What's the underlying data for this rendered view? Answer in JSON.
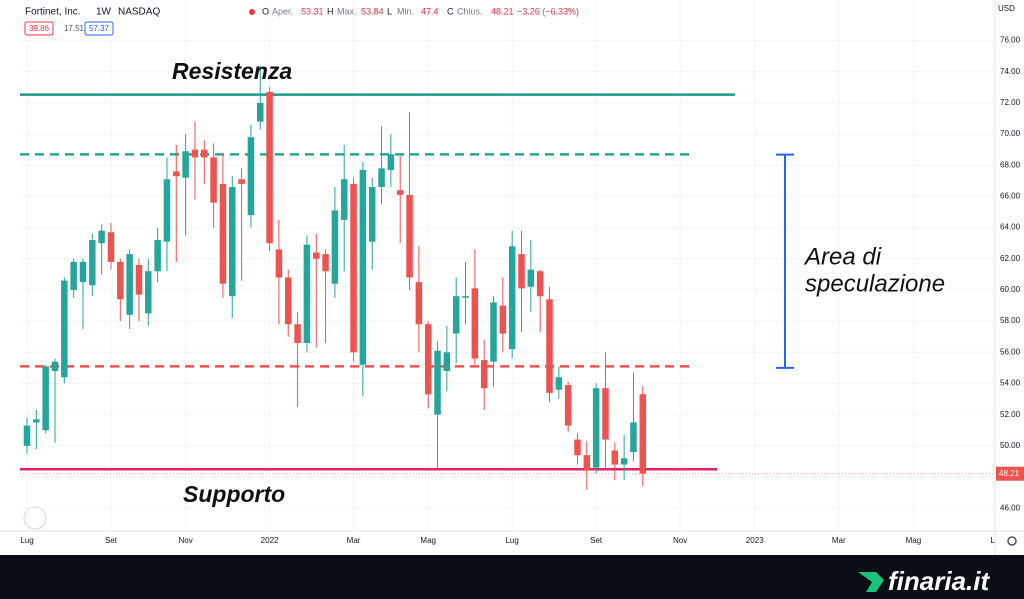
{
  "chart_data": {
    "type": "candlestick",
    "header": {
      "name": "Fortinet, Inc.",
      "interval": "1W",
      "exchange": "NASDAQ",
      "fields": [
        {
          "key": "O",
          "label": "Aper."
        },
        {
          "key": "H",
          "label": "Max."
        },
        {
          "key": "L",
          "label": "Min."
        },
        {
          "key": "C",
          "label": "Chius."
        }
      ],
      "change": "−3.26 (−6.33%)",
      "indicators": [
        "39.86",
        "17.51",
        "57.37"
      ],
      "currency": "USD"
    },
    "up_color": "#26a69a",
    "down_color": "#ef5350",
    "candles": [
      {
        "open": 50.0,
        "high": 51.8,
        "low": 49.5,
        "close": 51.3
      },
      {
        "open": 51.5,
        "high": 52.3,
        "low": 49.8,
        "close": 51.7
      },
      {
        "open": 51.0,
        "high": 55.2,
        "low": 50.8,
        "close": 55.1
      },
      {
        "open": 54.8,
        "high": 55.6,
        "low": 50.2,
        "close": 55.4
      },
      {
        "open": 54.4,
        "high": 60.8,
        "low": 54.0,
        "close": 60.6
      },
      {
        "open": 60.0,
        "high": 62.0,
        "low": 59.5,
        "close": 61.8
      },
      {
        "open": 60.5,
        "high": 62.0,
        "low": 57.5,
        "close": 61.8
      },
      {
        "open": 60.3,
        "high": 63.6,
        "low": 59.6,
        "close": 63.2
      },
      {
        "open": 63.0,
        "high": 64.2,
        "low": 61.0,
        "close": 63.8
      },
      {
        "open": 63.7,
        "high": 64.3,
        "low": 61.3,
        "close": 61.8
      },
      {
        "open": 61.8,
        "high": 62.0,
        "low": 58.0,
        "close": 59.4
      },
      {
        "open": 58.4,
        "high": 62.6,
        "low": 57.5,
        "close": 62.3
      },
      {
        "open": 61.6,
        "high": 62.0,
        "low": 58.0,
        "close": 59.7
      },
      {
        "open": 58.5,
        "high": 62.0,
        "low": 57.7,
        "close": 61.2
      },
      {
        "open": 61.2,
        "high": 64.0,
        "low": 60.5,
        "close": 63.2
      },
      {
        "open": 63.1,
        "high": 68.5,
        "low": 61.2,
        "close": 67.1
      },
      {
        "open": 67.6,
        "high": 69.3,
        "low": 61.8,
        "close": 67.3
      },
      {
        "open": 67.2,
        "high": 70.0,
        "low": 63.5,
        "close": 68.9
      },
      {
        "open": 69.0,
        "high": 70.8,
        "low": 65.8,
        "close": 68.5
      },
      {
        "open": 69.0,
        "high": 69.6,
        "low": 66.8,
        "close": 68.5
      },
      {
        "open": 68.5,
        "high": 69.4,
        "low": 64.0,
        "close": 65.6
      },
      {
        "open": 66.8,
        "high": 68.8,
        "low": 59.5,
        "close": 60.4
      },
      {
        "open": 59.6,
        "high": 67.3,
        "low": 58.2,
        "close": 66.6
      },
      {
        "open": 67.1,
        "high": 67.8,
        "low": 60.6,
        "close": 66.8
      },
      {
        "open": 64.8,
        "high": 70.6,
        "low": 64.0,
        "close": 69.8
      },
      {
        "open": 70.8,
        "high": 74.4,
        "low": 70.3,
        "close": 72.0
      },
      {
        "open": 72.7,
        "high": 73.0,
        "low": 62.5,
        "close": 63.0
      },
      {
        "open": 62.6,
        "high": 64.5,
        "low": 57.8,
        "close": 60.8
      },
      {
        "open": 60.8,
        "high": 61.3,
        "low": 57.0,
        "close": 57.8
      },
      {
        "open": 57.8,
        "high": 58.6,
        "low": 52.5,
        "close": 56.6
      },
      {
        "open": 56.6,
        "high": 63.5,
        "low": 56.0,
        "close": 62.9
      },
      {
        "open": 62.4,
        "high": 63.6,
        "low": 56.3,
        "close": 62.0
      },
      {
        "open": 62.3,
        "high": 62.6,
        "low": 56.6,
        "close": 61.2
      },
      {
        "open": 60.4,
        "high": 66.6,
        "low": 59.5,
        "close": 65.1
      },
      {
        "open": 64.5,
        "high": 69.3,
        "low": 61.2,
        "close": 67.1
      },
      {
        "open": 66.8,
        "high": 67.2,
        "low": 55.4,
        "close": 56.0
      },
      {
        "open": 55.2,
        "high": 68.2,
        "low": 53.2,
        "close": 67.7
      },
      {
        "open": 63.1,
        "high": 67.2,
        "low": 61.3,
        "close": 66.6
      },
      {
        "open": 66.6,
        "high": 70.5,
        "low": 65.5,
        "close": 67.8
      },
      {
        "open": 67.7,
        "high": 70.0,
        "low": 66.6,
        "close": 68.7
      },
      {
        "open": 66.4,
        "high": 68.6,
        "low": 63.0,
        "close": 66.1
      },
      {
        "open": 66.1,
        "high": 71.4,
        "low": 60.0,
        "close": 60.8
      },
      {
        "open": 60.5,
        "high": 62.8,
        "low": 56.0,
        "close": 57.8
      },
      {
        "open": 57.8,
        "high": 58.0,
        "low": 52.4,
        "close": 53.3
      },
      {
        "open": 52.0,
        "high": 56.7,
        "low": 48.6,
        "close": 56.1
      },
      {
        "open": 54.8,
        "high": 57.7,
        "low": 53.5,
        "close": 56.0
      },
      {
        "open": 57.2,
        "high": 60.8,
        "low": 55.3,
        "close": 59.6
      },
      {
        "open": 59.5,
        "high": 61.8,
        "low": 57.8,
        "close": 59.6
      },
      {
        "open": 60.1,
        "high": 62.6,
        "low": 55.2,
        "close": 55.6
      },
      {
        "open": 55.5,
        "high": 56.8,
        "low": 52.3,
        "close": 53.7
      },
      {
        "open": 55.4,
        "high": 59.6,
        "low": 53.8,
        "close": 59.2
      },
      {
        "open": 59.0,
        "high": 60.8,
        "low": 56.0,
        "close": 57.2
      },
      {
        "open": 56.2,
        "high": 63.8,
        "low": 55.6,
        "close": 62.8
      },
      {
        "open": 62.3,
        "high": 63.8,
        "low": 57.3,
        "close": 60.1
      },
      {
        "open": 60.2,
        "high": 63.2,
        "low": 58.6,
        "close": 61.3
      },
      {
        "open": 61.2,
        "high": 61.3,
        "low": 57.3,
        "close": 59.6
      },
      {
        "open": 59.4,
        "high": 60.2,
        "low": 52.8,
        "close": 53.4
      },
      {
        "open": 53.6,
        "high": 55.1,
        "low": 53.0,
        "close": 54.4
      },
      {
        "open": 53.9,
        "high": 54.1,
        "low": 50.9,
        "close": 51.3
      },
      {
        "open": 50.4,
        "high": 50.8,
        "low": 48.8,
        "close": 49.4
      },
      {
        "open": 49.4,
        "high": 50.3,
        "low": 47.2,
        "close": 48.4
      },
      {
        "open": 48.6,
        "high": 54.0,
        "low": 48.2,
        "close": 53.7
      },
      {
        "open": 53.7,
        "high": 56.0,
        "low": 48.6,
        "close": 50.4
      },
      {
        "open": 49.7,
        "high": 50.2,
        "low": 47.8,
        "close": 48.8
      },
      {
        "open": 48.8,
        "high": 50.7,
        "low": 47.8,
        "close": 49.2
      },
      {
        "open": 49.6,
        "high": 54.7,
        "low": 49.0,
        "close": 51.5
      },
      {
        "open": 53.31,
        "high": 53.84,
        "low": 47.4,
        "close": 48.21
      }
    ],
    "xlim": [
      -0.75,
      103.75
    ],
    "xticks": [
      {
        "value": 0,
        "label": "Lug"
      },
      {
        "value": 9,
        "label": "Set"
      },
      {
        "value": 17,
        "label": "Nov"
      },
      {
        "value": 26,
        "label": "2022"
      },
      {
        "value": 35,
        "label": "Mar"
      },
      {
        "value": 43,
        "label": "Mag"
      },
      {
        "value": 52,
        "label": "Lug"
      },
      {
        "value": 61,
        "label": "Set"
      },
      {
        "value": 70,
        "label": "Nov"
      },
      {
        "value": 78,
        "label": "2023"
      },
      {
        "value": 87,
        "label": "Mar"
      },
      {
        "value": 95,
        "label": "Mag"
      },
      {
        "value": 103.5,
        "label": "L"
      }
    ],
    "ylim": [
      44.6,
      78.6
    ],
    "yticks": [
      {
        "value": 46,
        "label": "46.00"
      },
      {
        "value": 48,
        "label": "48.00"
      },
      {
        "value": 50,
        "label": "50.00"
      },
      {
        "value": 52,
        "label": "52.00"
      },
      {
        "value": 54,
        "label": "54.00"
      },
      {
        "value": 56,
        "label": "56.00"
      },
      {
        "value": 58,
        "label": "58.00"
      },
      {
        "value": 60,
        "label": "60.00"
      },
      {
        "value": 62,
        "label": "62.00"
      },
      {
        "value": 64,
        "label": "64.00"
      },
      {
        "value": 66,
        "label": "66.00"
      },
      {
        "value": 68,
        "label": "68.00"
      },
      {
        "value": 70,
        "label": "70.00"
      },
      {
        "value": 72,
        "label": "72.00"
      },
      {
        "value": 74,
        "label": "74.00"
      },
      {
        "value": 76,
        "label": "76.00"
      }
    ],
    "levels": [
      {
        "value": 72.53,
        "color": "#1e9c8a",
        "dash": false
      },
      {
        "value": 68.7,
        "color": "#26a69a",
        "dash": true
      },
      {
        "value": 55.1,
        "color": "#ef5350",
        "dash": true
      },
      {
        "value": 48.5,
        "color": "#e91e63",
        "dash": false
      }
    ],
    "annotations": [
      "Resistenza",
      "Supporto"
    ],
    "bracket": {
      "range": [
        55.0,
        68.68
      ],
      "color": "#2962ff",
      "label": [
        "Area di",
        "speculazione"
      ]
    }
  },
  "footer": {
    "brand": "finaria.it"
  }
}
